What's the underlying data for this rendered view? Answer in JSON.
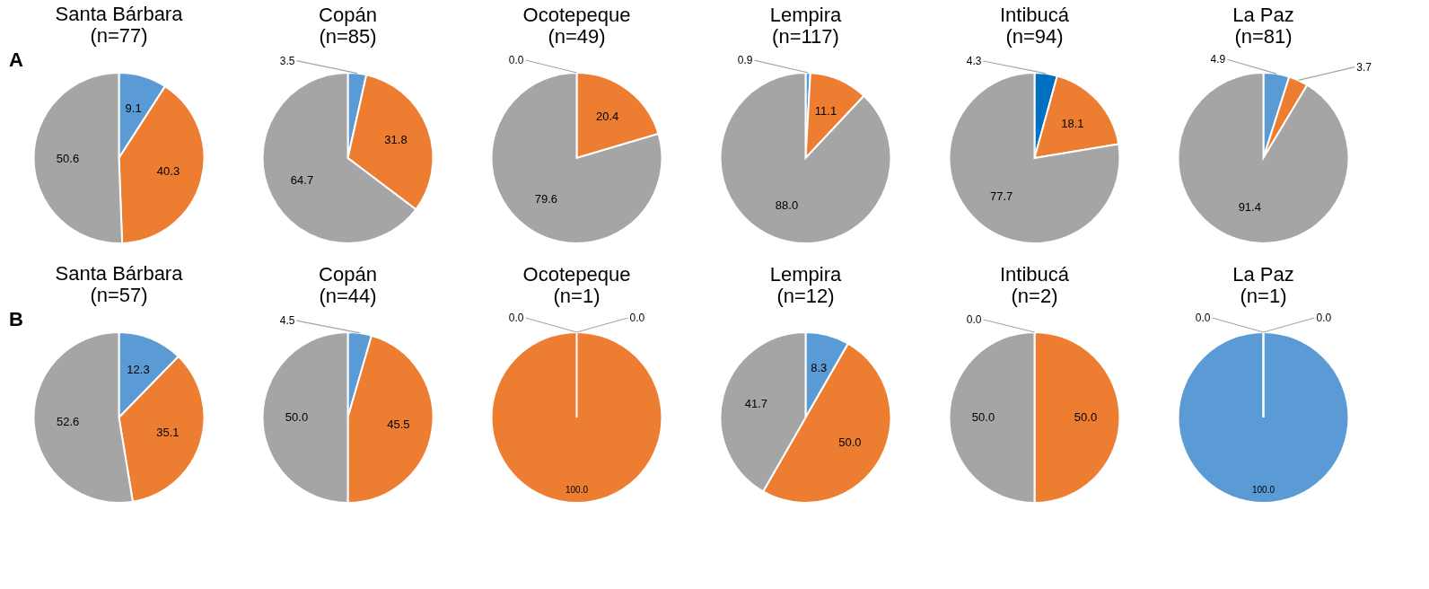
{
  "chart_data": [
    {
      "type": "pie",
      "title": "Santa Bárbara\n(n=77)",
      "annotations": [
        "A"
      ],
      "categories": [
        null,
        null,
        null
      ],
      "values": [
        9.1,
        40.3,
        50.6
      ],
      "value_labels": [
        "9.1",
        "40.3",
        "50.6"
      ],
      "colors": [
        "#5b9bd5",
        "#ed7d31",
        "#a5a5a5"
      ]
    },
    {
      "type": "pie",
      "title": "Copán\n(n=85)",
      "categories": [
        null,
        null,
        null
      ],
      "values": [
        3.5,
        31.8,
        64.7
      ],
      "value_labels": [
        "3.5",
        "31.8",
        "64.7"
      ],
      "colors": [
        "#5b9bd5",
        "#ed7d31",
        "#a5a5a5"
      ]
    },
    {
      "type": "pie",
      "title": "Ocotepeque\n(n=49)",
      "categories": [
        null,
        null,
        null
      ],
      "values": [
        0,
        20.4,
        79.6
      ],
      "value_labels": [
        "0.0",
        "20.4",
        "79.6"
      ],
      "colors": [
        "#5b9bd5",
        "#ed7d31",
        "#a5a5a5"
      ]
    },
    {
      "type": "pie",
      "title": "Lempira\n(n=117)",
      "categories": [
        null,
        null,
        null
      ],
      "values": [
        0.9,
        11.1,
        88
      ],
      "value_labels": [
        "0.9",
        "11.1",
        "88.0"
      ],
      "colors": [
        "#5b9bd5",
        "#ed7d31",
        "#a5a5a5"
      ]
    },
    {
      "type": "pie",
      "title": "Intibucá\n(n=94)",
      "categories": [
        null,
        null,
        null
      ],
      "values": [
        4.3,
        18.1,
        77.7
      ],
      "value_labels": [
        "4.3",
        "18.1",
        "77.7"
      ],
      "colors": [
        "#0070c0",
        "#ed7d31",
        "#a5a5a5"
      ]
    },
    {
      "type": "pie",
      "title": "La Paz\n(n=81)",
      "categories": [
        null,
        null,
        null
      ],
      "values": [
        4.9,
        3.7,
        91.4
      ],
      "value_labels": [
        "4.9",
        "3.7",
        "91.4"
      ],
      "colors": [
        "#5b9bd5",
        "#ed7d31",
        "#a5a5a5"
      ]
    },
    {
      "type": "pie",
      "title": "Santa Bárbara\n(n=57)",
      "annotations": [
        "B"
      ],
      "categories": [
        null,
        null,
        null
      ],
      "values": [
        12.3,
        35.1,
        52.6
      ],
      "value_labels": [
        "12.3",
        "35.1",
        "52.6"
      ],
      "colors": [
        "#5b9bd5",
        "#ed7d31",
        "#a5a5a5"
      ]
    },
    {
      "type": "pie",
      "title": "Copán\n(n=44)",
      "categories": [
        null,
        null,
        null
      ],
      "values": [
        4.5,
        45.5,
        50
      ],
      "value_labels": [
        "4.5",
        "45.5",
        "50.0"
      ],
      "colors": [
        "#5b9bd5",
        "#ed7d31",
        "#a5a5a5"
      ]
    },
    {
      "type": "pie",
      "title": "Ocotepeque\n(n=1)",
      "categories": [
        null,
        null,
        null
      ],
      "values": [
        0,
        100,
        0
      ],
      "value_labels": [
        "0.0",
        "100.0",
        "0.0"
      ],
      "colors": [
        "#5b9bd5",
        "#ed7d31",
        "#a5a5a5"
      ]
    },
    {
      "type": "pie",
      "title": "Lempira\n(n=12)",
      "categories": [
        null,
        null,
        null
      ],
      "values": [
        8.3,
        50,
        41.7
      ],
      "value_labels": [
        "8.3",
        "50.0",
        "41.7"
      ],
      "colors": [
        "#5b9bd5",
        "#ed7d31",
        "#a5a5a5"
      ]
    },
    {
      "type": "pie",
      "title": "Intibucá\n(n=2)",
      "categories": [
        null,
        null,
        null
      ],
      "values": [
        0,
        50,
        50
      ],
      "value_labels": [
        "0.0",
        "50.0",
        "50.0"
      ],
      "colors": [
        "#5b9bd5",
        "#ed7d31",
        "#a5a5a5"
      ]
    },
    {
      "type": "pie",
      "title": "La Paz\n(n=1)",
      "categories": [
        null,
        null,
        null
      ],
      "values": [
        100,
        0,
        0
      ],
      "value_labels": [
        "100.0",
        "0.0",
        "0.0"
      ],
      "colors": [
        "#5b9bd5",
        "#ed7d31",
        "#a5a5a5"
      ]
    }
  ]
}
